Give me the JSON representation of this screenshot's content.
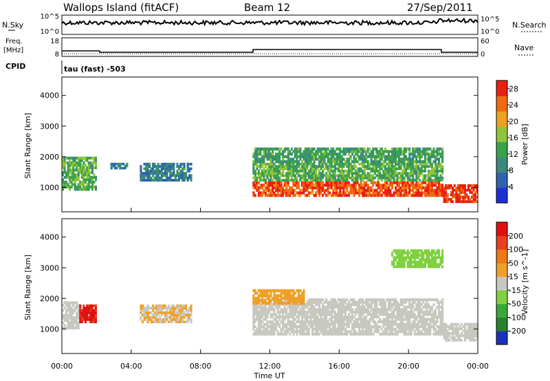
{
  "header": {
    "title": "Wallops Island (fitACF)",
    "beam": "Beam 12",
    "date": "27/Sep/2011"
  },
  "nsky_panel": {
    "left_label": "N.Sky",
    "right_label": "N.Search",
    "left_ticks": [
      "10^5",
      "10^0"
    ],
    "right_ticks": [
      "10^5",
      "10^0"
    ]
  },
  "freq_panel": {
    "left_label_line1": "Freq.",
    "left_label_line2": "[MHz]",
    "right_label": "Nave",
    "left_ticks": [
      "18",
      "8"
    ],
    "right_ticks": [
      "60",
      "0"
    ]
  },
  "cpid": {
    "label": "CPID",
    "value": "tau (fast) -503"
  },
  "colors": {
    "power_scale": [
      "#1f2fd6",
      "#2f62b0",
      "#3a8a7c",
      "#3aa34a",
      "#8fc43a",
      "#f0a020",
      "#f06a10",
      "#e82010"
    ],
    "velocity_scale": [
      "#1a30b8",
      "#2a8030",
      "#38a838",
      "#80d040",
      "#c8c8c0",
      "#f0a028",
      "#f07818",
      "#e84020",
      "#e01010"
    ]
  },
  "chart_data": [
    {
      "type": "heatmap",
      "panel": "power",
      "xlabel": "Time UT",
      "ylabel": "Slant Range [km]",
      "x_ticks": [
        "00:00",
        "04:00",
        "08:00",
        "12:00",
        "16:00",
        "20:00",
        "00:00"
      ],
      "xlim_hours": [
        0,
        24
      ],
      "ylim_km": [
        200,
        4600
      ],
      "y_ticks": [
        "1000",
        "2000",
        "3000",
        "4000"
      ],
      "colorbar": {
        "label": "Power [dB]",
        "ticks": [
          "4",
          "8",
          "12",
          "16",
          "20",
          "24",
          "28"
        ],
        "range": [
          0,
          30
        ]
      },
      "regions": [
        {
          "t0": 0.0,
          "t1": 2.0,
          "r0": 900,
          "r1": 2000,
          "level": 14
        },
        {
          "t0": 2.8,
          "t1": 3.8,
          "r0": 1600,
          "r1": 1800,
          "level": 8
        },
        {
          "t0": 4.5,
          "t1": 7.5,
          "r0": 1200,
          "r1": 1800,
          "level": 8
        },
        {
          "t0": 11.0,
          "t1": 22.0,
          "r0": 700,
          "r1": 1200,
          "level": 26
        },
        {
          "t0": 11.0,
          "t1": 22.0,
          "r0": 1200,
          "r1": 1800,
          "level": 14
        },
        {
          "t0": 11.0,
          "t1": 22.0,
          "r0": 1800,
          "r1": 2300,
          "level": 12
        },
        {
          "t0": 22.0,
          "t1": 24.0,
          "r0": 500,
          "r1": 1100,
          "level": 28
        }
      ]
    },
    {
      "type": "heatmap",
      "panel": "velocity",
      "xlabel": "Time UT",
      "ylabel": "Slant Range [km]",
      "x_ticks": [
        "00:00",
        "04:00",
        "08:00",
        "12:00",
        "16:00",
        "20:00",
        "00:00"
      ],
      "xlim_hours": [
        0,
        24
      ],
      "ylim_km": [
        200,
        4600
      ],
      "y_ticks": [
        "1000",
        "2000",
        "3000",
        "4000"
      ],
      "colorbar": {
        "label": "Velocity [m s^-1]",
        "ticks": [
          "200",
          "100",
          "50",
          "15",
          "-15",
          "-50",
          "-100",
          "-200"
        ],
        "range": [
          -250,
          250
        ]
      },
      "regions": [
        {
          "t0": 0.0,
          "t1": 1.0,
          "r0": 1000,
          "r1": 1900,
          "level": 0
        },
        {
          "t0": 1.0,
          "t1": 2.0,
          "r0": 1200,
          "r1": 1800,
          "level": 200
        },
        {
          "t0": 4.5,
          "t1": 7.5,
          "r0": 1200,
          "r1": 1800,
          "level": 30
        },
        {
          "t0": 11.0,
          "t1": 22.0,
          "r0": 800,
          "r1": 2000,
          "level": 0
        },
        {
          "t0": 11.0,
          "t1": 14.0,
          "r0": 1800,
          "r1": 2300,
          "level": 50
        },
        {
          "t0": 19.0,
          "t1": 22.0,
          "r0": 3000,
          "r1": 3600,
          "level": -50
        },
        {
          "t0": 22.0,
          "t1": 24.0,
          "r0": 600,
          "r1": 1200,
          "level": 0
        }
      ]
    }
  ]
}
